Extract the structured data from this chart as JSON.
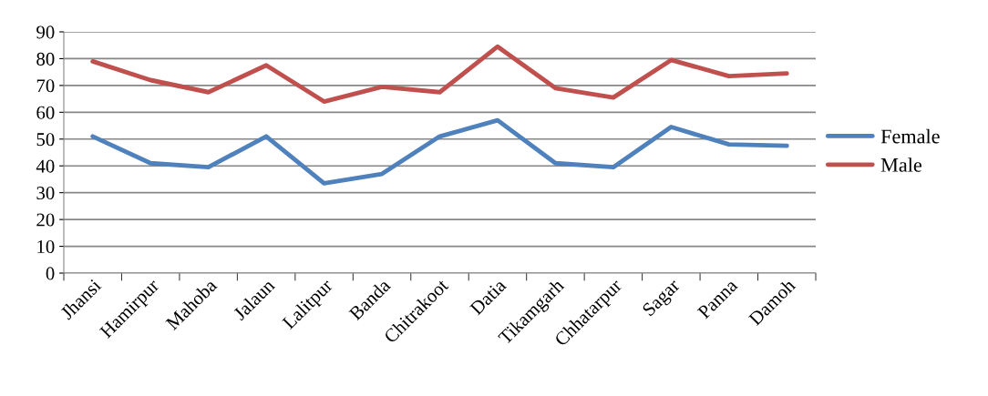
{
  "chart_data": {
    "type": "line",
    "categories": [
      "Jhansi",
      "Hamirpur",
      "Mahoba",
      "Jalaun",
      "Lalitpur",
      "Banda",
      "Chitrakoot",
      "Datia",
      "Tikamgarh",
      "Chhatarpur",
      "Sagar",
      "Panna",
      "Damoh"
    ],
    "series": [
      {
        "name": "Female",
        "color": "#4f81bd",
        "values": [
          51,
          41,
          39.5,
          51,
          33.5,
          37,
          51,
          57,
          41,
          39.5,
          54.5,
          48,
          47.5
        ]
      },
      {
        "name": "Male",
        "color": "#c0504d",
        "values": [
          79,
          72,
          67.5,
          77.5,
          64,
          69.5,
          67.5,
          84.5,
          69,
          65.5,
          79.5,
          73.5,
          74.5
        ]
      }
    ],
    "ylim": [
      0,
      90
    ],
    "yticks": [
      0,
      10,
      20,
      30,
      40,
      50,
      60,
      70,
      80,
      90
    ],
    "grid": "y",
    "legend": "right",
    "marker": "none",
    "line_style": "solid"
  }
}
